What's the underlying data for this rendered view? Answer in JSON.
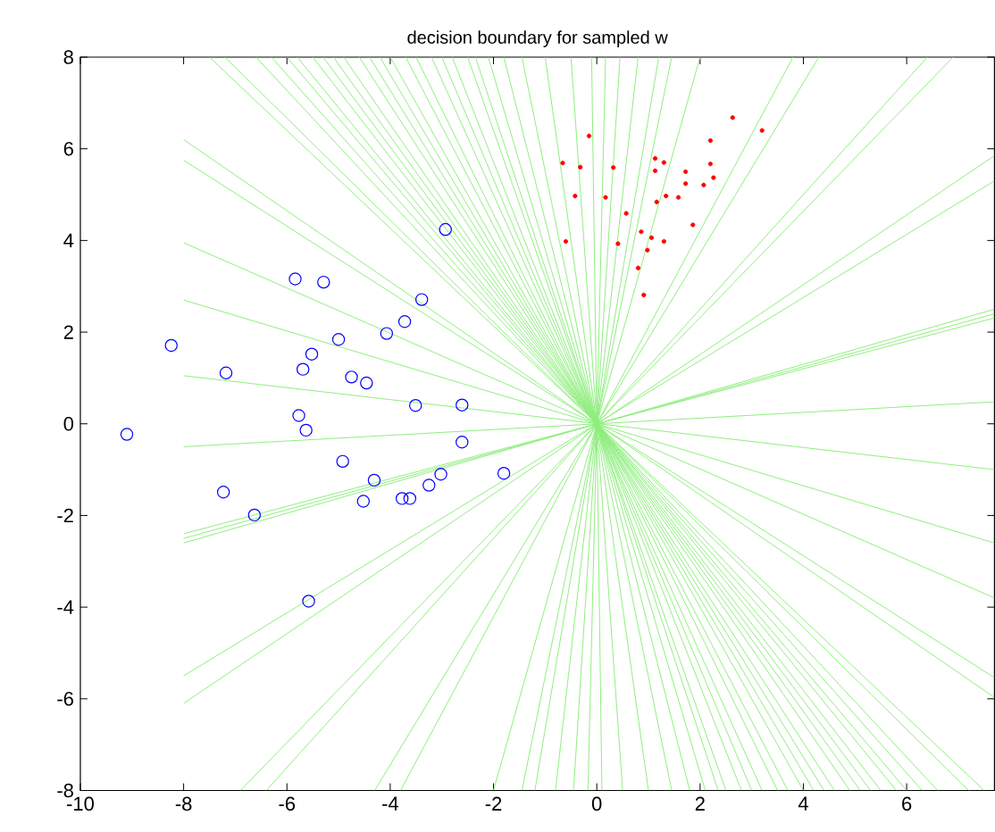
{
  "chart_data": {
    "type": "scatter",
    "title": "decision boundary for sampled w",
    "xlim": [
      -10,
      7.7
    ],
    "ylim": [
      -8,
      8
    ],
    "xticks": [
      -10,
      -8,
      -6,
      -4,
      -2,
      0,
      2,
      4,
      6
    ],
    "yticks": [
      -8,
      -6,
      -4,
      -2,
      0,
      2,
      4,
      6,
      8
    ],
    "grid": false,
    "series": [
      {
        "marker": "circle",
        "color": "#0000ff",
        "x": [
          -5.84,
          -5.29,
          -3.39,
          -3.72,
          -4.07,
          -5.0,
          -8.24,
          -5.52,
          -5.69,
          -7.18,
          -4.75,
          -4.46,
          -3.51,
          -2.61,
          -5.77,
          -9.1,
          -5.63,
          -2.93,
          -2.61,
          -4.92,
          -7.23,
          -4.31,
          -3.02,
          -1.8,
          -3.25,
          -4.52,
          -3.77,
          -3.62,
          -6.63,
          -5.58
        ],
        "values": [
          3.16,
          3.09,
          2.71,
          2.23,
          1.97,
          1.84,
          1.71,
          1.52,
          1.19,
          1.11,
          1.02,
          0.89,
          0.4,
          0.41,
          0.18,
          -0.23,
          -0.14,
          4.24,
          -0.4,
          -0.82,
          -1.49,
          -1.23,
          -1.1,
          -1.08,
          -1.34,
          -1.69,
          -1.63,
          -1.63,
          -1.99,
          -3.87
        ]
      },
      {
        "color": "#ff0000",
        "x": [
          2.63,
          3.2,
          -0.15,
          2.2,
          -0.66,
          0.32,
          1.13,
          1.3,
          1.13,
          1.72,
          2.2,
          2.26,
          2.07,
          1.72,
          -0.32,
          -0.42,
          0.17,
          1.34,
          1.58,
          1.16,
          0.57,
          1.86,
          0.86,
          1.06,
          1.3,
          -0.6,
          0.41,
          0.98,
          0.8,
          0.91
        ],
        "values": [
          6.68,
          6.4,
          6.28,
          6.18,
          5.69,
          5.59,
          5.79,
          5.7,
          5.52,
          5.5,
          5.67,
          5.37,
          5.21,
          5.24,
          5.6,
          4.97,
          4.94,
          4.97,
          4.94,
          4.84,
          4.59,
          4.34,
          4.19,
          4.06,
          3.98,
          3.98,
          3.93,
          3.79,
          3.4,
          2.81
        ]
      },
      {
        "type": "line",
        "color": "#90ee80",
        "x": [
          -8,
          7.7
        ],
        "values": [
          6.2,
          -5.97
        ]
      },
      {
        "type": "line",
        "color": "#90ee80",
        "x": [
          -8,
          7.7
        ],
        "values": [
          5.75,
          -5.54
        ]
      },
      {
        "type": "line",
        "color": "#90ee80",
        "x": [
          -8,
          7.7
        ],
        "values": [
          3.95,
          -3.8
        ]
      },
      {
        "type": "line",
        "color": "#90ee80",
        "x": [
          -8,
          7.7
        ],
        "values": [
          2.7,
          -2.6
        ]
      },
      {
        "type": "line",
        "color": "#90ee80",
        "x": [
          -8,
          7.7
        ],
        "values": [
          1.05,
          -1.0
        ]
      },
      {
        "type": "line",
        "color": "#90ee80",
        "x": [
          -8,
          7.7
        ],
        "values": [
          -0.5,
          0.48
        ]
      },
      {
        "type": "line",
        "color": "#90ee80",
        "x": [
          -8,
          7.7
        ],
        "values": [
          -2.4,
          2.31
        ]
      },
      {
        "type": "line",
        "color": "#90ee80",
        "x": [
          -8,
          7.7
        ],
        "values": [
          -2.5,
          2.4
        ]
      },
      {
        "type": "line",
        "color": "#90ee80",
        "x": [
          -8,
          7.7
        ],
        "values": [
          -2.6,
          2.5
        ]
      },
      {
        "type": "line",
        "color": "#90ee80",
        "x": [
          -8,
          7.7
        ],
        "values": [
          -5.5,
          5.3
        ]
      },
      {
        "type": "line",
        "color": "#90ee80",
        "x": [
          -8,
          7.7
        ],
        "values": [
          -6.1,
          5.85
        ]
      },
      {
        "type": "line",
        "color": "#90ee80",
        "x": [
          -6.9,
          6.9
        ],
        "values": [
          -8,
          8
        ]
      },
      {
        "type": "line",
        "color": "#90ee80",
        "x": [
          -6.4,
          6.4
        ],
        "values": [
          -8,
          8
        ]
      },
      {
        "type": "line",
        "color": "#90ee80",
        "x": [
          -4.3,
          4.3
        ],
        "values": [
          -8,
          8
        ]
      },
      {
        "type": "line",
        "color": "#90ee80",
        "x": [
          -3.8,
          3.8
        ],
        "values": [
          -8,
          8
        ]
      },
      {
        "type": "line",
        "color": "#90ee80",
        "x": [
          -2.0,
          2.0
        ],
        "values": [
          -8,
          8
        ]
      },
      {
        "type": "line",
        "color": "#90ee80",
        "x": [
          -1.45,
          1.45
        ],
        "values": [
          -8,
          8
        ]
      },
      {
        "type": "line",
        "color": "#90ee80",
        "x": [
          -1.2,
          1.2
        ],
        "values": [
          -8,
          8
        ]
      },
      {
        "type": "line",
        "color": "#90ee80",
        "x": [
          -0.8,
          0.8
        ],
        "values": [
          -8,
          8
        ]
      },
      {
        "type": "line",
        "color": "#90ee80",
        "x": [
          -0.45,
          0.45
        ],
        "values": [
          -8,
          8
        ]
      },
      {
        "type": "line",
        "color": "#90ee80",
        "x": [
          -0.17,
          0.17
        ],
        "values": [
          -8,
          8
        ]
      },
      {
        "type": "line",
        "color": "#90ee80",
        "x": [
          0.1,
          -0.1
        ],
        "values": [
          -8,
          8
        ]
      },
      {
        "type": "line",
        "color": "#90ee80",
        "x": [
          0.5,
          -0.5
        ],
        "values": [
          -8,
          8
        ]
      },
      {
        "type": "line",
        "color": "#90ee80",
        "x": [
          1.0,
          -1.0
        ],
        "values": [
          -8,
          8
        ]
      },
      {
        "type": "line",
        "color": "#90ee80",
        "x": [
          1.45,
          -1.45
        ],
        "values": [
          -8,
          8
        ]
      },
      {
        "type": "line",
        "color": "#90ee80",
        "x": [
          1.8,
          -1.8
        ],
        "values": [
          -8,
          8
        ]
      },
      {
        "type": "line",
        "color": "#90ee80",
        "x": [
          2.1,
          -2.1
        ],
        "values": [
          -8,
          8
        ]
      },
      {
        "type": "line",
        "color": "#90ee80",
        "x": [
          2.35,
          -2.35
        ],
        "values": [
          -8,
          8
        ]
      },
      {
        "type": "line",
        "color": "#90ee80",
        "x": [
          2.5,
          -2.5
        ],
        "values": [
          -8,
          8
        ]
      },
      {
        "type": "line",
        "color": "#90ee80",
        "x": [
          2.8,
          -2.8
        ],
        "values": [
          -8,
          8
        ]
      },
      {
        "type": "line",
        "color": "#90ee80",
        "x": [
          3.0,
          -3.0
        ],
        "values": [
          -8,
          8
        ]
      },
      {
        "type": "line",
        "color": "#90ee80",
        "x": [
          3.2,
          -3.2
        ],
        "values": [
          -8,
          8
        ]
      },
      {
        "type": "line",
        "color": "#90ee80",
        "x": [
          3.5,
          -3.5
        ],
        "values": [
          -8,
          8
        ]
      },
      {
        "type": "line",
        "color": "#90ee80",
        "x": [
          3.7,
          -3.7
        ],
        "values": [
          -8,
          8
        ]
      },
      {
        "type": "line",
        "color": "#90ee80",
        "x": [
          4.0,
          -4.0
        ],
        "values": [
          -8,
          8
        ]
      },
      {
        "type": "line",
        "color": "#90ee80",
        "x": [
          4.2,
          -4.2
        ],
        "values": [
          -8,
          8
        ]
      },
      {
        "type": "line",
        "color": "#90ee80",
        "x": [
          4.4,
          -4.4
        ],
        "values": [
          -8,
          8
        ]
      },
      {
        "type": "line",
        "color": "#90ee80",
        "x": [
          4.6,
          -4.6
        ],
        "values": [
          -8,
          8
        ]
      },
      {
        "type": "line",
        "color": "#90ee80",
        "x": [
          4.9,
          -4.9
        ],
        "values": [
          -8,
          8
        ]
      },
      {
        "type": "line",
        "color": "#90ee80",
        "x": [
          5.1,
          -5.1
        ],
        "values": [
          -8,
          8
        ]
      },
      {
        "type": "line",
        "color": "#90ee80",
        "x": [
          5.3,
          -5.3
        ],
        "values": [
          -8,
          8
        ]
      },
      {
        "type": "line",
        "color": "#90ee80",
        "x": [
          5.5,
          -5.5
        ],
        "values": [
          -8,
          8
        ]
      },
      {
        "type": "line",
        "color": "#90ee80",
        "x": [
          5.8,
          -5.8
        ],
        "values": [
          -8,
          8
        ]
      },
      {
        "type": "line",
        "color": "#90ee80",
        "x": [
          6.0,
          -6.0
        ],
        "values": [
          -8,
          8
        ]
      },
      {
        "type": "line",
        "color": "#90ee80",
        "x": [
          6.3,
          -6.3
        ],
        "values": [
          -8,
          8
        ]
      },
      {
        "type": "line",
        "color": "#90ee80",
        "x": [
          6.6,
          -6.6
        ],
        "values": [
          -8,
          8
        ]
      },
      {
        "type": "line",
        "color": "#90ee80",
        "x": [
          7.2,
          -7.2
        ],
        "values": [
          -8,
          8
        ]
      },
      {
        "type": "line",
        "color": "#90ee80",
        "x": [
          7.5,
          -7.5
        ],
        "values": [
          -8,
          8
        ]
      }
    ]
  }
}
